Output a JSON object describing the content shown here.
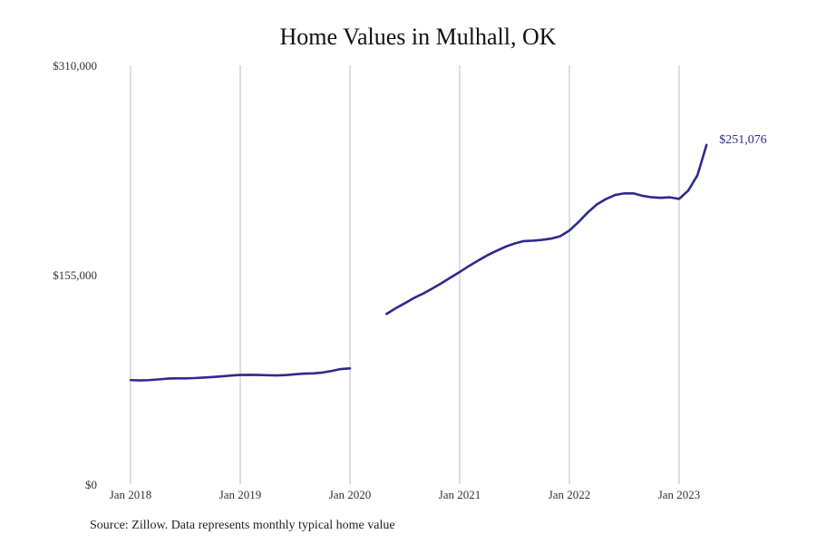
{
  "chart_data": {
    "type": "line",
    "title": "Home Values in Mulhall, OK",
    "xlabel": "",
    "ylabel": "",
    "ylim": [
      0,
      310000
    ],
    "y_ticks": [
      {
        "value": 0,
        "label": "$0"
      },
      {
        "value": 155000,
        "label": "$155,000"
      },
      {
        "value": 310000,
        "label": "$310,000"
      }
    ],
    "x_ticks": [
      {
        "date": "2018-01",
        "label": "Jan 2018"
      },
      {
        "date": "2019-01",
        "label": "Jan 2019"
      },
      {
        "date": "2020-01",
        "label": "Jan 2020"
      },
      {
        "date": "2021-01",
        "label": "Jan 2021"
      },
      {
        "date": "2022-01",
        "label": "Jan 2022"
      },
      {
        "date": "2023-01",
        "label": "Jan 2023"
      }
    ],
    "x_range": [
      "2018-01",
      "2024-01"
    ],
    "grid": "vertical",
    "line_color": "#2e2a8c",
    "series": [
      {
        "segments": [
          [
            [
              "2018-01",
              77000
            ],
            [
              "2018-02",
              76800
            ],
            [
              "2018-03",
              77000
            ],
            [
              "2018-04",
              77500
            ],
            [
              "2018-05",
              78100
            ],
            [
              "2018-06",
              78300
            ],
            [
              "2018-07",
              78300
            ],
            [
              "2018-08",
              78500
            ],
            [
              "2018-09",
              78900
            ],
            [
              "2018-10",
              79300
            ],
            [
              "2018-11",
              79800
            ],
            [
              "2018-12",
              80400
            ],
            [
              "2019-01",
              80800
            ],
            [
              "2019-02",
              80900
            ],
            [
              "2019-03",
              80800
            ],
            [
              "2019-04",
              80600
            ],
            [
              "2019-05",
              80500
            ],
            [
              "2019-06",
              80700
            ],
            [
              "2019-07",
              81300
            ],
            [
              "2019-08",
              81800
            ],
            [
              "2019-09",
              82000
            ],
            [
              "2019-10",
              82600
            ],
            [
              "2019-11",
              83800
            ],
            [
              "2019-12",
              85200
            ],
            [
              "2020-01",
              85700
            ]
          ],
          [
            [
              "2020-05",
              126000
            ],
            [
              "2020-06",
              130200
            ],
            [
              "2020-07",
              133900
            ],
            [
              "2020-08",
              137800
            ],
            [
              "2020-09",
              141000
            ],
            [
              "2020-10",
              144800
            ],
            [
              "2020-11",
              148700
            ],
            [
              "2020-12",
              152900
            ],
            [
              "2021-01",
              157000
            ],
            [
              "2021-02",
              161400
            ],
            [
              "2021-03",
              165400
            ],
            [
              "2021-04",
              169300
            ],
            [
              "2021-05",
              172600
            ],
            [
              "2021-06",
              175700
            ],
            [
              "2021-07",
              178100
            ],
            [
              "2021-08",
              179900
            ],
            [
              "2021-09",
              180200
            ],
            [
              "2021-10",
              180800
            ],
            [
              "2021-11",
              181700
            ],
            [
              "2021-12",
              183500
            ],
            [
              "2022-01",
              187700
            ],
            [
              "2022-02",
              194000
            ],
            [
              "2022-03",
              201000
            ],
            [
              "2022-04",
              207000
            ],
            [
              "2022-05",
              211000
            ],
            [
              "2022-06",
              214000
            ],
            [
              "2022-07",
              215200
            ],
            [
              "2022-08",
              215200
            ],
            [
              "2022-09",
              213400
            ],
            [
              "2022-10",
              212300
            ],
            [
              "2022-11",
              211900
            ],
            [
              "2022-12",
              212300
            ],
            [
              "2023-01",
              211100
            ],
            [
              "2023-02",
              217300
            ],
            [
              "2023-03",
              228500
            ],
            [
              "2023-04",
              251076
            ]
          ]
        ]
      }
    ],
    "end_label": "$251,076"
  },
  "source_note": "Source: Zillow. Data represents monthly typical home value"
}
